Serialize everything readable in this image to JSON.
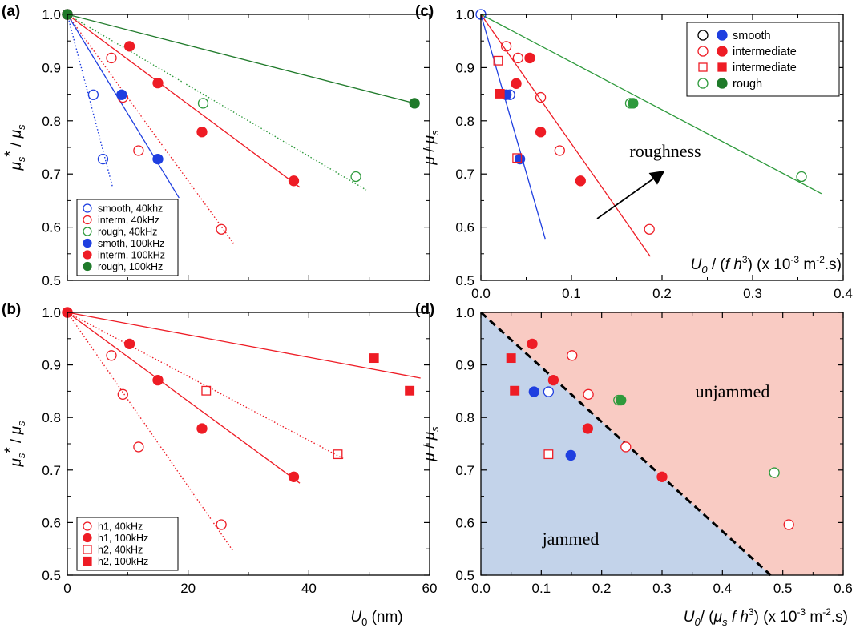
{
  "colors": {
    "blue": "#1f3fe0",
    "red": "#ee1c25",
    "green": "#2e9a3c",
    "dark_green": "#1f7a2a",
    "jammed_fill": "#c3d3ea",
    "unjammed_fill": "#f9cbc3"
  },
  "chart_data": [
    {
      "id": "a",
      "type": "scatter",
      "panel_label": "(a)",
      "ylabel": "μs* / μs",
      "xlabel": "",
      "xlim": [
        0,
        60
      ],
      "ylim": [
        0.5,
        1.0
      ],
      "xticks": [],
      "yticks": [
        0.5,
        0.6,
        0.7,
        0.8,
        0.9,
        1.0
      ],
      "legend": {
        "placement": "bottom-left"
      },
      "series": [
        {
          "name": "smooth, 40khz",
          "color": "blue",
          "marker": "circle",
          "filled": false,
          "x": [
            0,
            4.3,
            5.9
          ],
          "y": [
            1.0,
            0.849,
            0.728
          ],
          "fit": {
            "x": [
              0,
              7.5
            ],
            "y": [
              1.0,
              0.675
            ],
            "style": "dotted"
          }
        },
        {
          "name": "interm, 40kHz",
          "color": "red",
          "marker": "circle",
          "filled": false,
          "x": [
            0,
            7.3,
            9.2,
            11.8,
            25.5
          ],
          "y": [
            1.0,
            0.918,
            0.844,
            0.744,
            0.596
          ],
          "fit": {
            "x": [
              0,
              27.5
            ],
            "y": [
              1.0,
              0.57
            ],
            "style": "dotted"
          }
        },
        {
          "name": "rough, 40kHz",
          "color": "green",
          "marker": "circle",
          "filled": false,
          "x": [
            0,
            22.5,
            47.8
          ],
          "y": [
            1.0,
            0.833,
            0.695
          ],
          "fit": {
            "x": [
              0,
              49.5
            ],
            "y": [
              1.0,
              0.67
            ],
            "style": "dotted"
          }
        },
        {
          "name": "smoth, 100kHz",
          "color": "blue",
          "marker": "circle",
          "filled": true,
          "x": [
            0,
            9.0,
            15.0
          ],
          "y": [
            1.0,
            0.849,
            0.728
          ],
          "fit": {
            "x": [
              0,
              18.5
            ],
            "y": [
              1.0,
              0.655
            ],
            "style": "solid"
          }
        },
        {
          "name": "interm, 100kHz",
          "color": "red",
          "marker": "circle",
          "filled": true,
          "x": [
            0,
            10.3,
            15.0,
            22.3,
            37.5
          ],
          "y": [
            1.0,
            0.94,
            0.871,
            0.779,
            0.687
          ],
          "fit": {
            "x": [
              0,
              38.5
            ],
            "y": [
              1.0,
              0.675
            ],
            "style": "solid"
          }
        },
        {
          "name": "rough, 100kHz",
          "color": "dark_green",
          "marker": "circle",
          "filled": true,
          "x": [
            0,
            57.5
          ],
          "y": [
            1.0,
            0.833
          ],
          "fit": {
            "x": [
              0,
              57.5
            ],
            "y": [
              1.0,
              0.833
            ],
            "style": "solid"
          }
        }
      ]
    },
    {
      "id": "b",
      "type": "scatter",
      "panel_label": "(b)",
      "ylabel": "μs* / μs",
      "xlabel": "U0 (nm)",
      "xlim": [
        0,
        60
      ],
      "ylim": [
        0.5,
        1.0
      ],
      "xticks": [
        0,
        20,
        40,
        60
      ],
      "yticks": [
        0.5,
        0.6,
        0.7,
        0.8,
        0.9,
        1.0
      ],
      "legend": {
        "placement": "bottom-left"
      },
      "series": [
        {
          "name": "h1, 40kHz",
          "color": "red",
          "marker": "circle",
          "filled": false,
          "x": [
            0,
            7.3,
            9.2,
            11.8,
            25.5
          ],
          "y": [
            1.0,
            0.918,
            0.844,
            0.744,
            0.596
          ],
          "fit": {
            "x": [
              0,
              27.5
            ],
            "y": [
              1.0,
              0.545
            ],
            "style": "dotted"
          }
        },
        {
          "name": "h1, 100kHz",
          "color": "red",
          "marker": "circle",
          "filled": true,
          "x": [
            0,
            10.3,
            15.0,
            22.3,
            37.5
          ],
          "y": [
            1.0,
            0.94,
            0.871,
            0.779,
            0.687
          ],
          "fit": {
            "x": [
              0,
              38.5
            ],
            "y": [
              1.0,
              0.675
            ],
            "style": "solid"
          }
        },
        {
          "name": "h2, 40kHz",
          "color": "red",
          "marker": "square",
          "filled": false,
          "x": [
            23.0,
            44.8
          ],
          "y": [
            0.851,
            0.73
          ],
          "fit": {
            "x": [
              0,
              46.0
            ],
            "y": [
              1.0,
              0.72
            ],
            "style": "dotted"
          }
        },
        {
          "name": "h2, 100kHz",
          "color": "red",
          "marker": "square",
          "filled": true,
          "x": [
            50.8,
            56.7
          ],
          "y": [
            0.913,
            0.851
          ],
          "fit": {
            "x": [
              0,
              58.5
            ],
            "y": [
              1.0,
              0.875
            ],
            "style": "solid"
          }
        }
      ]
    },
    {
      "id": "c",
      "type": "scatter",
      "panel_label": "(c)",
      "ylabel": "μ / μs",
      "xlabel": "U0 / (f h3) (x 10-3 m-2.s)",
      "xlim": [
        0,
        0.4
      ],
      "ylim": [
        0.5,
        1.0
      ],
      "xticks": [
        0.0,
        0.1,
        0.2,
        0.3,
        0.4
      ],
      "yticks": [
        0.5,
        0.6,
        0.7,
        0.8,
        0.9,
        1.0
      ],
      "legend": {
        "placement": "top-right"
      },
      "annotation": "roughness",
      "series": [
        {
          "name": "smooth",
          "color": "blue",
          "marker": "circle",
          "filled": "both",
          "x": [
            0,
            0.028,
            0.032,
            0.043
          ],
          "y": [
            1.0,
            0.849,
            0.849,
            0.728
          ],
          "fit": {
            "x": [
              0,
              0.071
            ],
            "y": [
              1.0,
              0.578
            ],
            "style": "solid"
          }
        },
        {
          "name": "intermediate",
          "color": "red",
          "marker": "circle",
          "filled": "both",
          "x": [
            0.028,
            0.039,
            0.041,
            0.054,
            0.066,
            0.066,
            0.087,
            0.11,
            0.186
          ],
          "y": [
            0.94,
            0.87,
            0.918,
            0.918,
            0.844,
            0.779,
            0.744,
            0.687,
            0.596
          ],
          "fit": {
            "x": [
              0,
              0.187
            ],
            "y": [
              1.0,
              0.545
            ],
            "style": "solid"
          }
        },
        {
          "name": "intermediate",
          "color": "red",
          "marker": "square",
          "filled": "both",
          "x": [
            0.019,
            0.021,
            0.04
          ],
          "y": [
            0.913,
            0.851,
            0.73
          ]
        },
        {
          "name": "rough",
          "color": "green",
          "marker": "circle",
          "filled": "both",
          "x": [
            0.165,
            0.168,
            0.354
          ],
          "y": [
            0.833,
            0.833,
            0.695
          ],
          "fit": {
            "x": [
              0,
              0.376
            ],
            "y": [
              1.0,
              0.663
            ],
            "style": "solid"
          }
        }
      ]
    },
    {
      "id": "d",
      "type": "scatter",
      "panel_label": "(d)",
      "ylabel": "μ / μs",
      "xlabel": "U0/ (μs f h3) (x 10-3 m-2.s)",
      "xlim": [
        0,
        0.6
      ],
      "ylim": [
        0.5,
        1.0
      ],
      "xticks": [
        0.0,
        0.1,
        0.2,
        0.3,
        0.4,
        0.5,
        0.6
      ],
      "yticks": [
        0.5,
        0.6,
        0.7,
        0.8,
        0.9,
        1.0
      ],
      "regions": {
        "boundary": {
          "x": [
            0,
            0.48
          ],
          "y": [
            1.0,
            0.5
          ]
        },
        "below": "jammed",
        "above": "unjammed"
      },
      "series": [
        {
          "color": "blue",
          "marker": "circle",
          "filled": true,
          "x": [
            0.088,
            0.149
          ],
          "y": [
            0.849,
            0.728
          ]
        },
        {
          "color": "blue",
          "marker": "circle",
          "filled": false,
          "x": [
            0.112
          ],
          "y": [
            0.849
          ]
        },
        {
          "color": "red",
          "marker": "circle",
          "filled": true,
          "x": [
            0.085,
            0.12,
            0.177,
            0.3
          ],
          "y": [
            0.94,
            0.871,
            0.779,
            0.687
          ]
        },
        {
          "color": "red",
          "marker": "circle",
          "filled": false,
          "x": [
            0.151,
            0.178,
            0.24,
            0.51
          ],
          "y": [
            0.918,
            0.844,
            0.744,
            0.596
          ]
        },
        {
          "color": "red",
          "marker": "square",
          "filled": true,
          "x": [
            0.05,
            0.056
          ],
          "y": [
            0.913,
            0.851
          ]
        },
        {
          "color": "red",
          "marker": "square",
          "filled": false,
          "x": [
            0.112
          ],
          "y": [
            0.73
          ]
        },
        {
          "color": "green",
          "marker": "circle",
          "filled": "both",
          "x": [
            0.228,
            0.232
          ],
          "y": [
            0.833,
            0.833
          ]
        },
        {
          "color": "green",
          "marker": "circle",
          "filled": false,
          "x": [
            0.486
          ],
          "y": [
            0.695
          ]
        }
      ]
    }
  ]
}
